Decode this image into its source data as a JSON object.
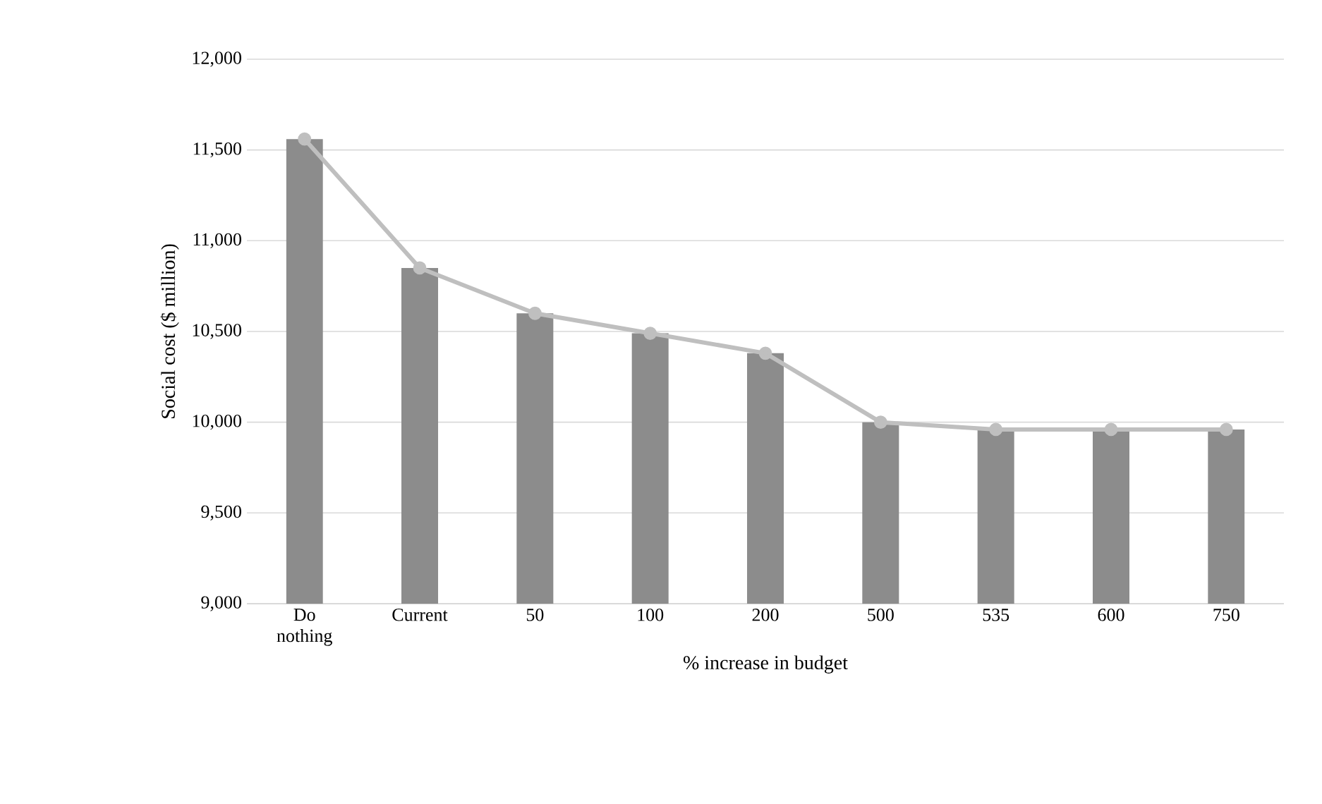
{
  "chart_data": {
    "type": "bar",
    "xlabel": "% increase in budget",
    "ylabel": "Social cost ($ million)",
    "categories": [
      "Do nothing",
      "Current",
      "50",
      "100",
      "200",
      "500",
      "535",
      "600",
      "750"
    ],
    "series": [
      {
        "color": "#8c8c8c",
        "values": [
          11560,
          10850,
          10600,
          10490,
          10380,
          10000,
          9960,
          9960,
          9960
        ]
      },
      {
        "type": "line",
        "color": "#bfbfbf",
        "marker": "circle",
        "values": [
          11560,
          10850,
          10600,
          10490,
          10380,
          10000,
          9960,
          9960,
          9960
        ]
      }
    ],
    "ylim": [
      9000,
      12000
    ],
    "yticks": [
      {
        "value": 9000,
        "label": "9,000"
      },
      {
        "value": 9500,
        "label": "9,500"
      },
      {
        "value": 10000,
        "label": "10,000"
      },
      {
        "value": 10500,
        "label": "10,500"
      },
      {
        "value": 11000,
        "label": "11,000"
      },
      {
        "value": 11500,
        "label": "11,500"
      },
      {
        "value": 12000,
        "label": "12,000"
      }
    ],
    "grid": "y"
  }
}
